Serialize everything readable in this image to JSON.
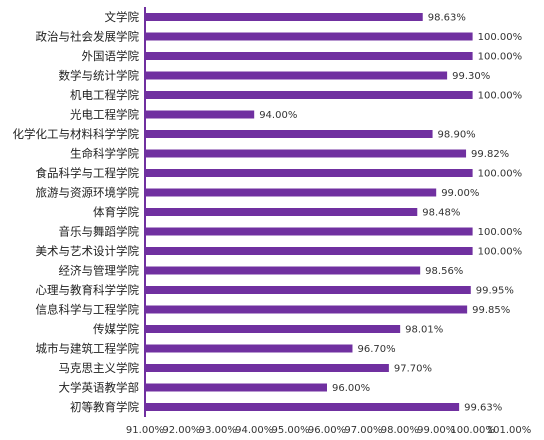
{
  "chart_data": {
    "type": "bar",
    "orientation": "horizontal",
    "title": "",
    "xlabel": "",
    "ylabel": "",
    "xlim": [
      91,
      101
    ],
    "grid": false,
    "legend": "none",
    "bar_color": "#7030a0",
    "categories": [
      "文学院",
      "政治与社会发展学院",
      "外国语学院",
      "数学与统计学院",
      "机电工程学院",
      "光电工程学院",
      "化学化工与材料科学学院",
      "生命科学学院",
      "食品科学与工程学院",
      "旅游与资源环境学院",
      "体育学院",
      "音乐与舞蹈学院",
      "美术与艺术设计学院",
      "经济与管理学院",
      "心理与教育科学学院",
      "信息科学与工程学院",
      "传媒学院",
      "城市与建筑工程学院",
      "马克思主义学院",
      "大学英语教学部",
      "初等教育学院"
    ],
    "values": [
      98.63,
      100,
      100,
      99.3,
      100,
      94.0,
      98.9,
      99.82,
      100,
      99.0,
      98.48,
      100,
      100,
      98.56,
      99.95,
      99.85,
      98.01,
      96.7,
      97.7,
      96.0,
      99.63
    ],
    "value_labels": [
      "98.63%",
      "100.00%",
      "100.00%",
      "99.30%",
      "100.00%",
      "94.00%",
      "98.90%",
      "99.82%",
      "100.00%",
      "99.00%",
      "98.48%",
      "100.00%",
      "100.00%",
      "98.56%",
      "99.95%",
      "99.85%",
      "98.01%",
      "96.70%",
      "97.70%",
      "96.00%",
      "99.63%"
    ],
    "x_ticks": [
      91,
      92,
      93,
      94,
      95,
      96,
      97,
      98,
      99,
      100,
      101
    ],
    "x_tick_labels": [
      "91.00%",
      "92.00%",
      "93.00%",
      "94.00%",
      "95.00%",
      "96.00%",
      "97.00%",
      "98.00%",
      "99.00%",
      "100.00%",
      "101.00%"
    ]
  }
}
